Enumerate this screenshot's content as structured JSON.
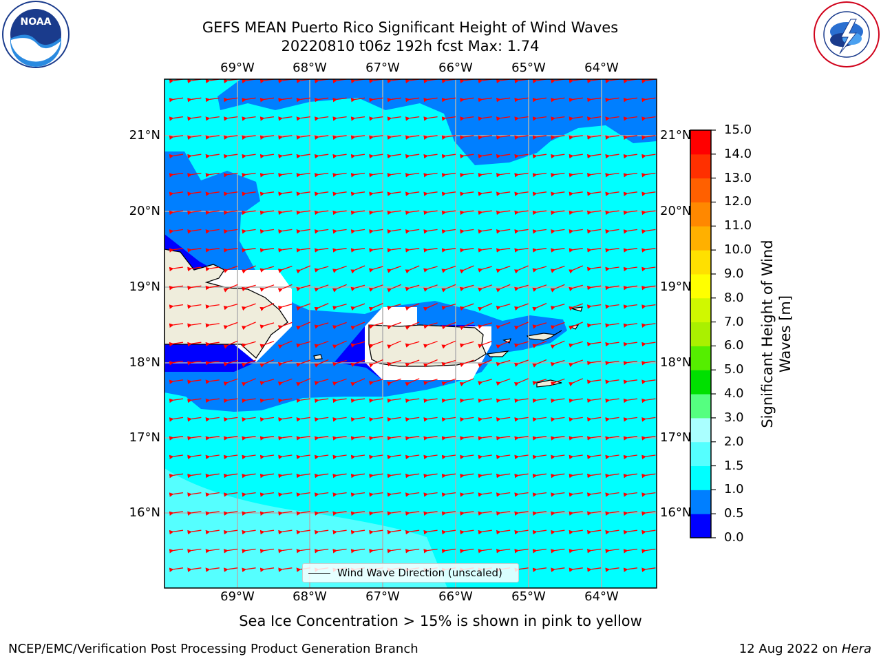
{
  "header": {
    "title_line1": "GEFS MEAN Puerto Rico Significant Height of Wind Waves",
    "title_line2": "20220810 t06z 192h fcst   Max: 1.74"
  },
  "logos": {
    "left": {
      "name": "noaa-logo",
      "text": "NOAA",
      "ring_text": "NATIONAL OCEANIC AND ATMOSPHERIC ADMINISTRATION  U.S. DEPARTMENT OF COMMERCE"
    },
    "right": {
      "name": "national-weather-service-logo",
      "ring_text": "NATIONAL WEATHER SERVICE"
    }
  },
  "map": {
    "lon_labels": [
      "69°W",
      "68°W",
      "67°W",
      "66°W",
      "65°W",
      "64°W"
    ],
    "lat_labels": [
      "21°N",
      "20°N",
      "19°N",
      "18°N",
      "17°N",
      "16°N"
    ],
    "legend_label": "Wind Wave Direction (unscaled)",
    "arrow_color": "#ff0000"
  },
  "colorbar": {
    "title_line1": "Significant Height of Wind",
    "title_line2": "Waves [m]",
    "labels": [
      "0.0",
      "0.5",
      "1.0",
      "1.5",
      "2.0",
      "3.0",
      "4.0",
      "5.0",
      "6.0",
      "7.0",
      "8.0",
      "9.0",
      "10.0",
      "11.0",
      "12.0",
      "13.0",
      "14.0",
      "15.0"
    ],
    "colors": [
      "#0000ff",
      "#007fff",
      "#00ffff",
      "#55ffff",
      "#aaffff",
      "#55ff80",
      "#00e000",
      "#55ee00",
      "#aaf000",
      "#d0f800",
      "#ffff00",
      "#ffe000",
      "#ffb000",
      "#ff8800",
      "#ff6000",
      "#ff3000",
      "#ff0000"
    ]
  },
  "notes": {
    "sea_ice": "Sea Ice Concentration > 15% is shown in pink to yellow"
  },
  "footer": {
    "left": "NCEP/EMC/Verification Post Processing Product Generation Branch",
    "right_date": "12 Aug 2022 on ",
    "right_host": "Hera"
  }
}
